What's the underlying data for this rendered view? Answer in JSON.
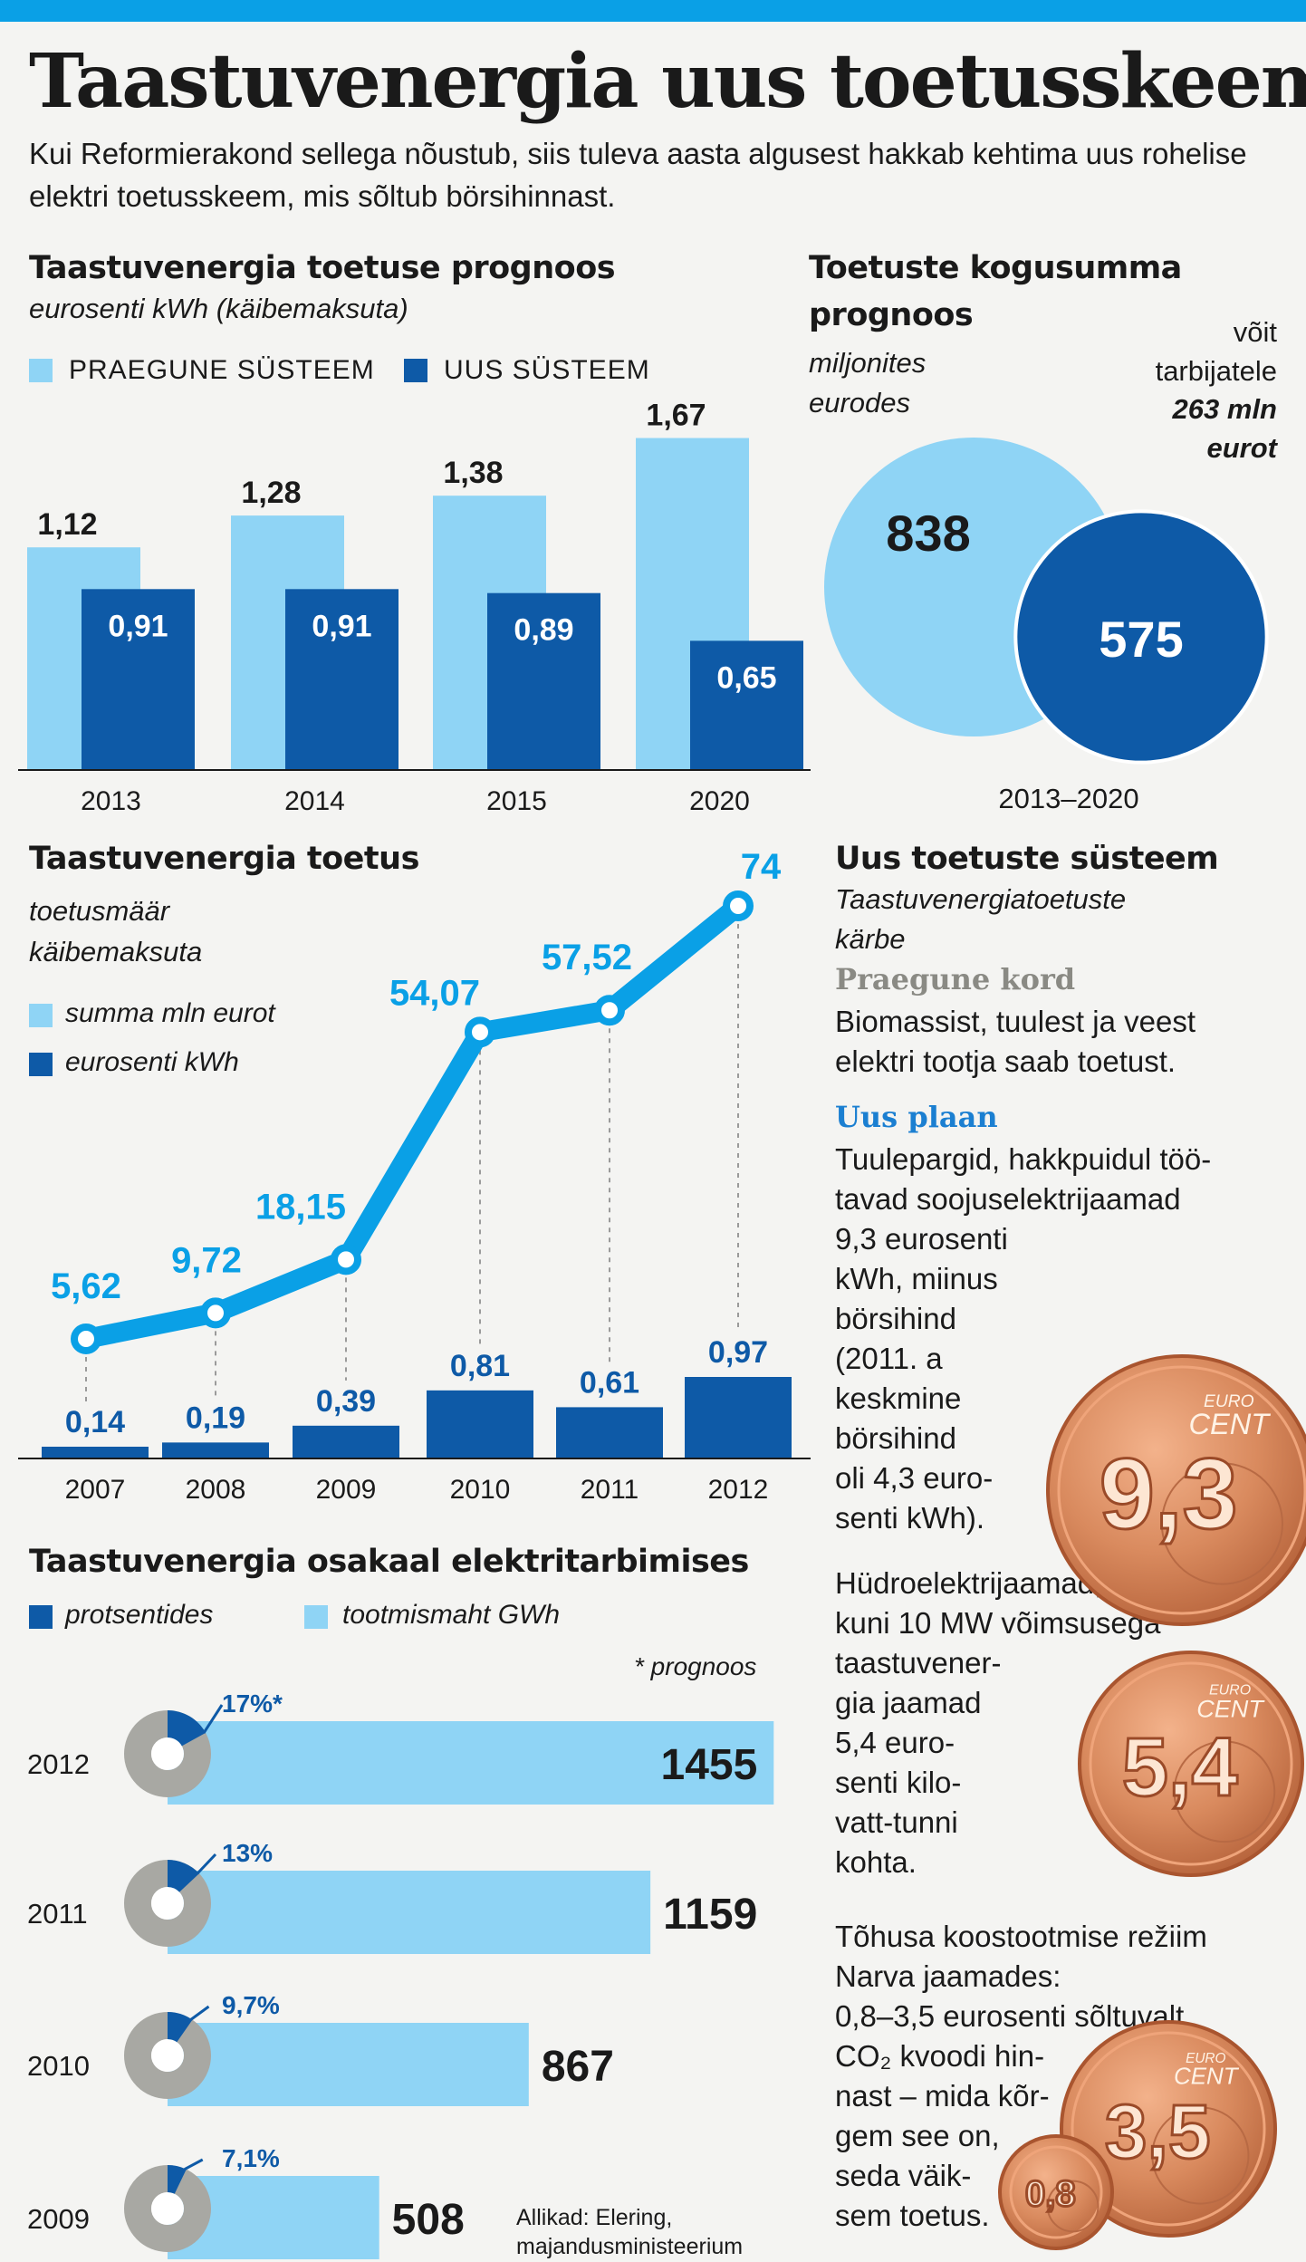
{
  "title": "Taastuvenergia uus toetusskeem",
  "subtitle": "Kui Reformierakond sellega nõustub, siis tuleva aasta algusest hakkab kehtima uus rohelise elektri toetusskeem, mis sõltub börsihinnast.",
  "colors": {
    "light": "#8fd4f5",
    "dark": "#0e5aa7",
    "accent": "#0aa0e6",
    "gray": "#a8a8a3"
  },
  "chart_data": [
    {
      "type": "bar",
      "title": "Taastuvenergia toetuse prognoos",
      "subtitle": "eurosenti kWh (käibemaksuta)",
      "categories": [
        "2013",
        "2014",
        "2015",
        "2020"
      ],
      "series": [
        {
          "name": "PRAEGUNE SÜSTEEM",
          "values": [
            1.12,
            1.28,
            1.38,
            1.67
          ],
          "labels": [
            "1,12",
            "1,28",
            "1,38",
            "1,67"
          ]
        },
        {
          "name": "UUS SÜSTEEM",
          "values": [
            0.91,
            0.91,
            0.89,
            0.65
          ],
          "labels": [
            "0,91",
            "0,91",
            "0,89",
            "0,65"
          ]
        }
      ],
      "ylim": [
        0,
        1.8
      ]
    },
    {
      "type": "venn",
      "title": "Toetuste kogusumma prognoos",
      "subtitle": "miljonites eurodes",
      "values": [
        838,
        575
      ],
      "value_labels": [
        "838",
        "575"
      ],
      "xlabel": "2013–2020",
      "note_lines": [
        "võit",
        "tarbijatele",
        "263 mln",
        "eurot"
      ]
    },
    {
      "type": "line+bar",
      "title": "Taastuvenergia toetus",
      "subtitle_lines": [
        "toetusmäär",
        "käibemaksuta"
      ],
      "legend": [
        "summa mln eurot",
        "eurosenti kWh"
      ],
      "x": [
        "2007",
        "2008",
        "2009",
        "2010",
        "2011",
        "2012"
      ],
      "line_values": [
        5.62,
        9.72,
        18.15,
        54.07,
        57.52,
        74
      ],
      "line_labels": [
        "5,62",
        "9,72",
        "18,15",
        "54,07",
        "57,52",
        "74"
      ],
      "bar_values": [
        0.14,
        0.19,
        0.39,
        0.81,
        0.61,
        0.97
      ],
      "bar_labels": [
        "0,14",
        "0,19",
        "0,39",
        "0,81",
        "0,61",
        "0,97"
      ]
    },
    {
      "type": "bar",
      "title": "Taastuvenergia osakaal elektritarbimises",
      "legend": [
        "protsentides",
        "tootmismaht GWh"
      ],
      "note": "* prognoos",
      "categories": [
        "2012",
        "2011",
        "2010",
        "2009"
      ],
      "values": [
        1455,
        1159,
        867,
        508
      ],
      "value_labels": [
        "1455",
        "1159",
        "867",
        "508"
      ],
      "percent_values": [
        17,
        13,
        9.7,
        7.1
      ],
      "percent_labels": [
        "17%*",
        "13%",
        "9,7%",
        "7,1%"
      ],
      "xlim": [
        0,
        1500
      ]
    }
  ],
  "legend1": {
    "current": "PRAEGUNE SÜSTEEM",
    "new": "UUS SÜSTEEM"
  },
  "venn": {
    "title_line1": "Toetuste kogusumma",
    "title_line2": "prognoos",
    "sub_line1": "miljonites",
    "sub_line2": "eurodes"
  },
  "right_panel": {
    "title": "Uus toetuste süsteem",
    "subtitle_line1": "Taastuvenergiatoetuste",
    "subtitle_line2": "kärbe",
    "current_heading": "Praegune kord",
    "current_line1": "Biomassist, tuulest ja veest",
    "current_line2": "elektri tootja saab toetust.",
    "plan_heading": "Uus plaan",
    "plan1_lines": [
      "Tuulepargid, hakkpuidul töö-",
      "tavad soojuselektrijaamad",
      "9,3 eurosenti",
      "kWh, miinus",
      "börsihind",
      "(2011. a",
      "keskmine",
      "börsihind",
      "oli 4,3 euro-",
      "senti kWh)."
    ],
    "plan2_lines": [
      "Hüdroelektrijaamad, muud",
      "kuni 10 MW võimsusega",
      "taastuvener-",
      "gia jaamad",
      "5,4 euro-",
      "senti kilo-",
      "vatt-tunni",
      "kohta."
    ],
    "plan3_lines": [
      "Tõhusa koostootmise režiim",
      "Narva jaamades:",
      "0,8–3,5 eurosenti sõltuvalt",
      "CO₂ kvoodi hin-",
      "nast – mida kõr-",
      "gem see on,",
      "seda väik-",
      "sem toetus."
    ],
    "coins": [
      {
        "value": "9,3",
        "brand1": "EURO",
        "brand2": "CENT"
      },
      {
        "value": "5,4",
        "brand1": "EURO",
        "brand2": "CENT"
      },
      {
        "value": "3,5",
        "brand1": "EURO",
        "brand2": "CENT"
      },
      {
        "value": "0,8"
      }
    ]
  },
  "sources_line1": "Allikad: Elering,",
  "sources_line2": "majandusministeerium"
}
